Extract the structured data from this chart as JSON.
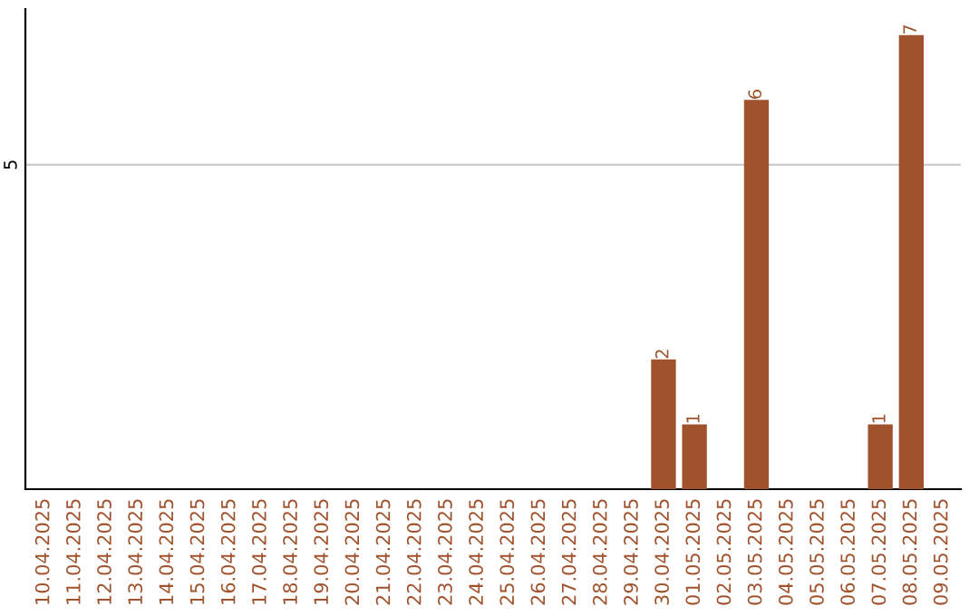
{
  "chart_data": {
    "type": "bar",
    "categories": [
      "10.04.2025",
      "11.04.2025",
      "12.04.2025",
      "13.04.2025",
      "14.04.2025",
      "15.04.2025",
      "16.04.2025",
      "17.04.2025",
      "18.04.2025",
      "19.04.2025",
      "20.04.2025",
      "21.04.2025",
      "22.04.2025",
      "23.04.2025",
      "24.04.2025",
      "25.04.2025",
      "26.04.2025",
      "27.04.2025",
      "28.04.2025",
      "29.04.2025",
      "30.04.2025",
      "01.05.2025",
      "02.05.2025",
      "03.05.2025",
      "04.05.2025",
      "05.05.2025",
      "06.05.2025",
      "07.05.2025",
      "08.05.2025",
      "09.05.2025"
    ],
    "values": [
      null,
      null,
      null,
      null,
      null,
      null,
      null,
      null,
      null,
      null,
      null,
      null,
      null,
      null,
      null,
      null,
      null,
      null,
      null,
      null,
      2,
      1,
      null,
      6,
      null,
      null,
      null,
      1,
      7,
      null
    ],
    "data_labels": true,
    "color": "#a0522d",
    "ylim": [
      0,
      7.4
    ],
    "yticks": [
      5
    ],
    "grid": "y"
  }
}
